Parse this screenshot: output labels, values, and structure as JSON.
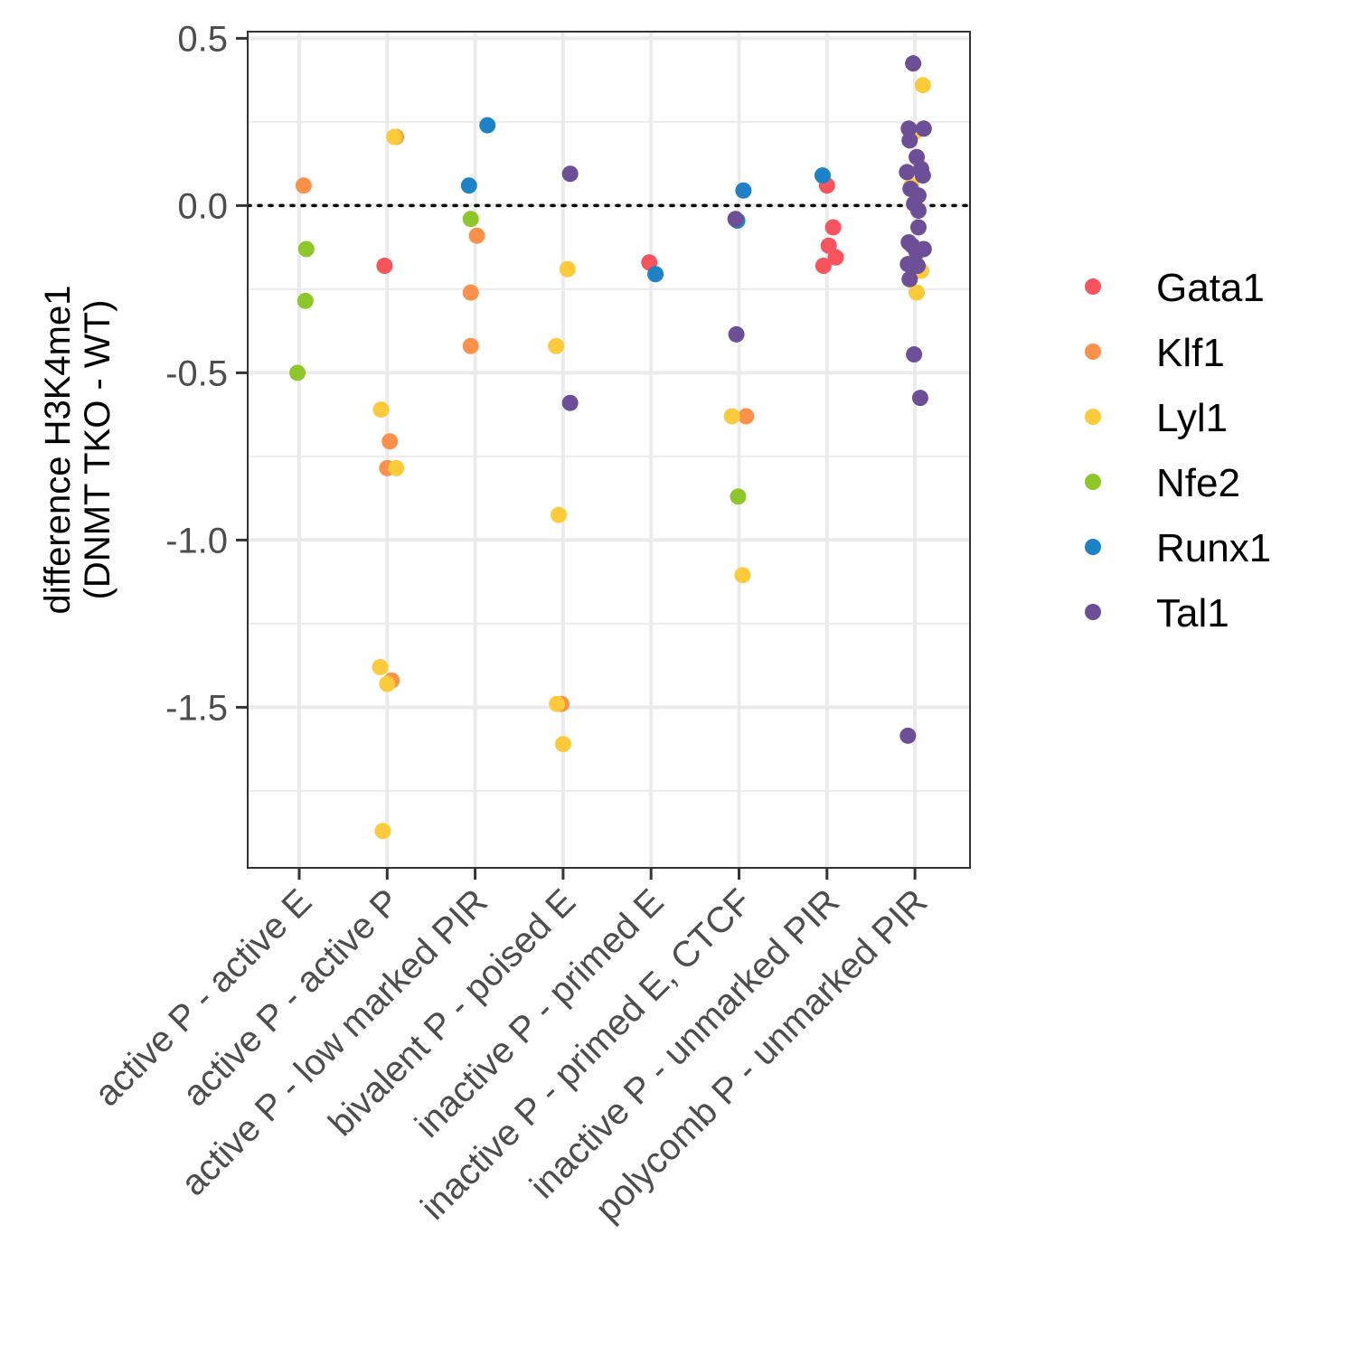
{
  "chart_data": {
    "type": "scatter",
    "title": "",
    "xlabel": "",
    "ylabel": [
      "difference H3K4me1",
      "(DNMT TKO - WT)"
    ],
    "categories": [
      "active P - active E",
      "active P - active P",
      "active P - low marked PIR",
      "bivalent P - poised E",
      "inactive P - primed E",
      "inactive P - primed E, CTCF",
      "inactive P - unmarked PIR",
      "polycomb P - unmarked PIR"
    ],
    "ylim": [
      -1.98,
      0.52
    ],
    "yticks": [
      {
        "value": 0.5,
        "label": "0.5"
      },
      {
        "value": 0.0,
        "label": "0.0"
      },
      {
        "value": -0.5,
        "label": "-0.5"
      },
      {
        "value": -1.0,
        "label": "-1.0"
      },
      {
        "value": -1.5,
        "label": "-1.5"
      }
    ],
    "yminor": [
      0.25,
      -0.25,
      -0.75,
      -1.25,
      -1.75
    ],
    "grid": true,
    "reference_line": {
      "y": 0.0,
      "style": "dotted"
    },
    "legend_position": "right",
    "series": [
      {
        "name": "Gata1",
        "color": "#f8545e",
        "points": [
          {
            "cat": 2,
            "jitter": -0.03,
            "y": -0.18
          },
          {
            "cat": 5,
            "jitter": -0.02,
            "y": -0.17
          },
          {
            "cat": 7,
            "jitter": 0.0,
            "y": 0.06
          },
          {
            "cat": 7,
            "jitter": 0.07,
            "y": -0.065
          },
          {
            "cat": 7,
            "jitter": 0.02,
            "y": -0.12
          },
          {
            "cat": 7,
            "jitter": 0.1,
            "y": -0.155
          },
          {
            "cat": 7,
            "jitter": -0.04,
            "y": -0.18
          }
        ]
      },
      {
        "name": "Klf1",
        "color": "#fb914b",
        "points": [
          {
            "cat": 1,
            "jitter": 0.05,
            "y": 0.06
          },
          {
            "cat": 2,
            "jitter": 0.1,
            "y": 0.205
          },
          {
            "cat": 2,
            "jitter": 0.03,
            "y": -0.705
          },
          {
            "cat": 2,
            "jitter": 0.0,
            "y": -0.785
          },
          {
            "cat": 2,
            "jitter": 0.05,
            "y": -1.42
          },
          {
            "cat": 3,
            "jitter": 0.02,
            "y": -0.09
          },
          {
            "cat": 3,
            "jitter": -0.05,
            "y": -0.26
          },
          {
            "cat": 3,
            "jitter": -0.05,
            "y": -0.42
          },
          {
            "cat": 4,
            "jitter": -0.02,
            "y": -1.49
          },
          {
            "cat": 6,
            "jitter": 0.08,
            "y": -0.63
          },
          {
            "cat": 8,
            "jitter": 0.03,
            "y": -0.195
          }
        ]
      },
      {
        "name": "Lyl1",
        "color": "#fdca3c",
        "points": [
          {
            "cat": 2,
            "jitter": 0.08,
            "y": 0.205
          },
          {
            "cat": 2,
            "jitter": -0.07,
            "y": -0.61
          },
          {
            "cat": 2,
            "jitter": 0.1,
            "y": -0.785
          },
          {
            "cat": 2,
            "jitter": -0.08,
            "y": -1.38
          },
          {
            "cat": 2,
            "jitter": 0.0,
            "y": -1.43
          },
          {
            "cat": 2,
            "jitter": -0.05,
            "y": -1.87
          },
          {
            "cat": 4,
            "jitter": 0.05,
            "y": -0.19
          },
          {
            "cat": 4,
            "jitter": -0.08,
            "y": -0.42
          },
          {
            "cat": 4,
            "jitter": -0.05,
            "y": -0.925
          },
          {
            "cat": 4,
            "jitter": -0.07,
            "y": -1.49
          },
          {
            "cat": 4,
            "jitter": 0.0,
            "y": -1.61
          },
          {
            "cat": 6,
            "jitter": -0.08,
            "y": -0.63
          },
          {
            "cat": 6,
            "jitter": 0.04,
            "y": -1.105
          },
          {
            "cat": 8,
            "jitter": 0.09,
            "y": 0.36
          },
          {
            "cat": 8,
            "jitter": 0.0,
            "y": 0.22
          },
          {
            "cat": 8,
            "jitter": -0.04,
            "y": 0.06
          },
          {
            "cat": 8,
            "jitter": 0.07,
            "y": -0.195
          },
          {
            "cat": 8,
            "jitter": 0.02,
            "y": -0.26
          }
        ]
      },
      {
        "name": "Nfe2",
        "color": "#8ec72a",
        "points": [
          {
            "cat": 1,
            "jitter": 0.08,
            "y": -0.13
          },
          {
            "cat": 1,
            "jitter": 0.07,
            "y": -0.285
          },
          {
            "cat": 1,
            "jitter": -0.02,
            "y": -0.5
          },
          {
            "cat": 3,
            "jitter": -0.05,
            "y": -0.04
          },
          {
            "cat": 6,
            "jitter": -0.01,
            "y": -0.87
          }
        ]
      },
      {
        "name": "Runx1",
        "color": "#1d82c6",
        "points": [
          {
            "cat": 3,
            "jitter": 0.14,
            "y": 0.24
          },
          {
            "cat": 3,
            "jitter": -0.07,
            "y": 0.06
          },
          {
            "cat": 5,
            "jitter": 0.05,
            "y": -0.205
          },
          {
            "cat": 6,
            "jitter": 0.05,
            "y": 0.045
          },
          {
            "cat": 6,
            "jitter": -0.02,
            "y": -0.045
          },
          {
            "cat": 7,
            "jitter": -0.05,
            "y": 0.09
          }
        ]
      },
      {
        "name": "Tal1",
        "color": "#6c4f96",
        "points": [
          {
            "cat": 4,
            "jitter": 0.08,
            "y": 0.095
          },
          {
            "cat": 4,
            "jitter": 0.08,
            "y": -0.59
          },
          {
            "cat": 6,
            "jitter": -0.04,
            "y": -0.04
          },
          {
            "cat": 6,
            "jitter": -0.03,
            "y": -0.385
          },
          {
            "cat": 8,
            "jitter": -0.02,
            "y": 0.425
          },
          {
            "cat": 8,
            "jitter": -0.07,
            "y": 0.23
          },
          {
            "cat": 8,
            "jitter": 0.1,
            "y": 0.23
          },
          {
            "cat": 8,
            "jitter": -0.06,
            "y": 0.195
          },
          {
            "cat": 8,
            "jitter": 0.02,
            "y": 0.145
          },
          {
            "cat": 8,
            "jitter": 0.07,
            "y": 0.11
          },
          {
            "cat": 8,
            "jitter": -0.09,
            "y": 0.1
          },
          {
            "cat": 8,
            "jitter": 0.09,
            "y": 0.09
          },
          {
            "cat": 8,
            "jitter": -0.05,
            "y": 0.05
          },
          {
            "cat": 8,
            "jitter": 0.04,
            "y": 0.03
          },
          {
            "cat": 8,
            "jitter": -0.01,
            "y": 0.005
          },
          {
            "cat": 8,
            "jitter": 0.04,
            "y": -0.015
          },
          {
            "cat": 8,
            "jitter": 0.04,
            "y": -0.065
          },
          {
            "cat": 8,
            "jitter": -0.07,
            "y": -0.11
          },
          {
            "cat": 8,
            "jitter": -0.03,
            "y": -0.12
          },
          {
            "cat": 8,
            "jitter": 0.1,
            "y": -0.13
          },
          {
            "cat": 8,
            "jitter": 0.02,
            "y": -0.14
          },
          {
            "cat": 8,
            "jitter": -0.08,
            "y": -0.175
          },
          {
            "cat": 8,
            "jitter": 0.03,
            "y": -0.18
          },
          {
            "cat": 8,
            "jitter": -0.06,
            "y": -0.22
          },
          {
            "cat": 8,
            "jitter": -0.01,
            "y": -0.445
          },
          {
            "cat": 8,
            "jitter": 0.06,
            "y": -0.575
          },
          {
            "cat": 8,
            "jitter": -0.08,
            "y": -1.585
          }
        ]
      }
    ]
  }
}
